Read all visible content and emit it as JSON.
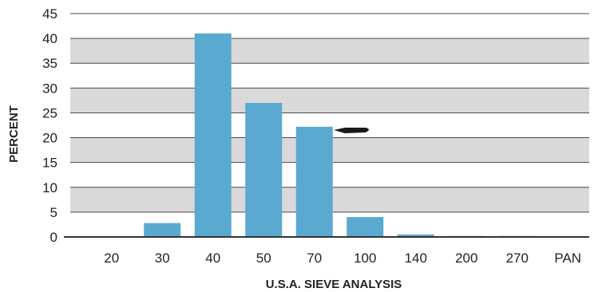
{
  "chart_data": {
    "type": "bar",
    "title": "",
    "xlabel": "U.S.A. SIEVE ANALYSIS",
    "ylabel": "PERCENT",
    "categories": [
      "20",
      "30",
      "40",
      "50",
      "70",
      "100",
      "140",
      "200",
      "270",
      "PAN"
    ],
    "values": [
      0,
      2.8,
      41,
      27,
      22.2,
      4,
      0.5,
      0.2,
      0.2,
      0
    ],
    "ylim": [
      0,
      45
    ],
    "yticks": [
      0,
      5,
      10,
      15,
      20,
      25,
      30,
      35,
      40,
      45
    ],
    "grid": true,
    "bar_color": "#5aa9d0",
    "grid_band_color": "#d9d9d9"
  }
}
